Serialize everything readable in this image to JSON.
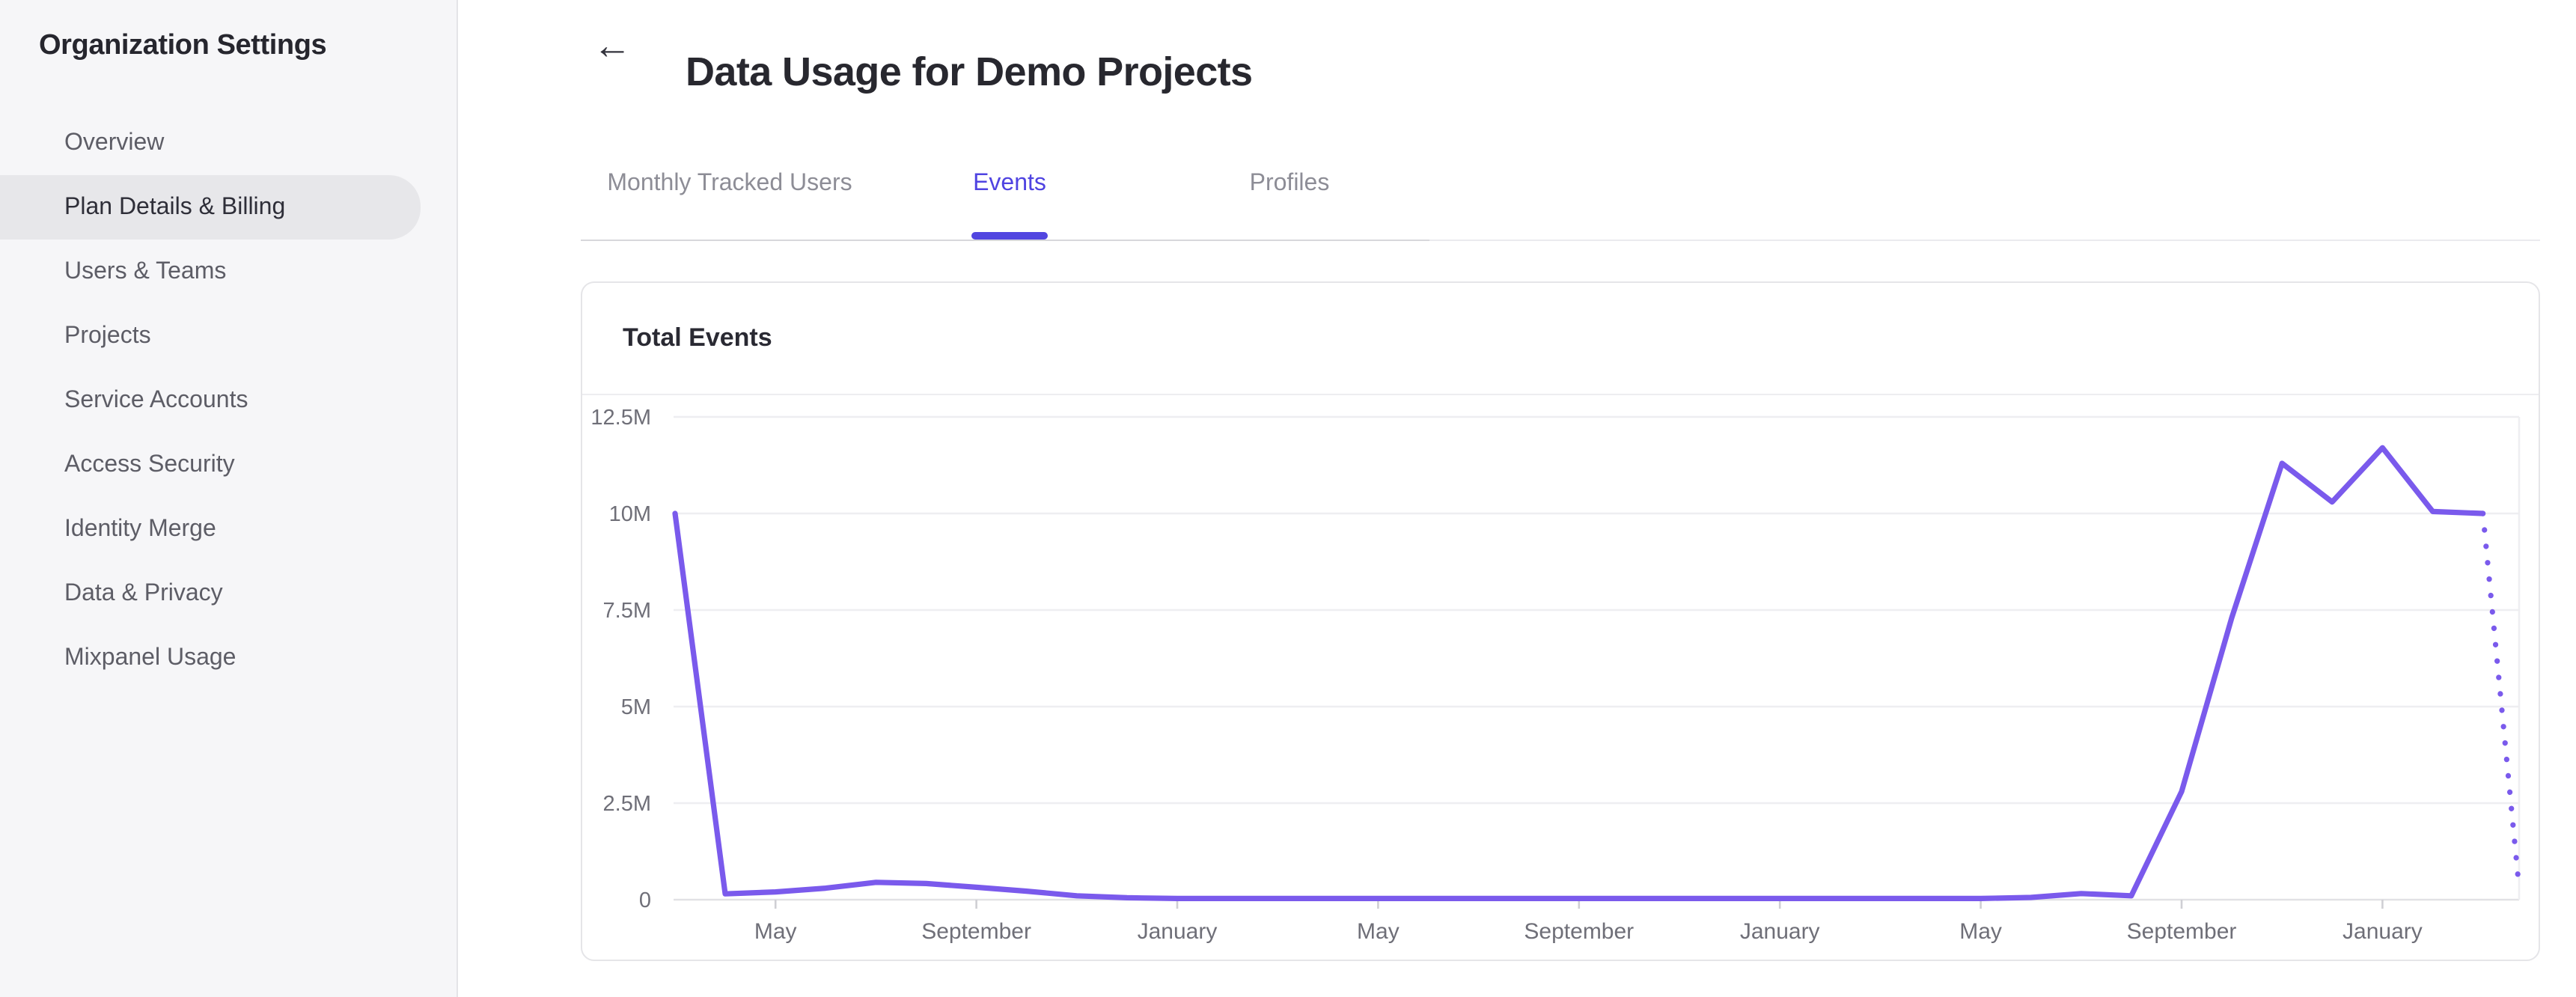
{
  "sidebar": {
    "title": "Organization Settings",
    "items": [
      {
        "label": "Overview",
        "selected": false
      },
      {
        "label": "Plan Details & Billing",
        "selected": true
      },
      {
        "label": "Users & Teams",
        "selected": false
      },
      {
        "label": "Projects",
        "selected": false
      },
      {
        "label": "Service Accounts",
        "selected": false
      },
      {
        "label": "Access Security",
        "selected": false
      },
      {
        "label": "Identity Merge",
        "selected": false
      },
      {
        "label": "Data & Privacy",
        "selected": false
      },
      {
        "label": "Mixpanel Usage",
        "selected": false
      }
    ]
  },
  "header": {
    "title": "Data Usage for Demo Projects"
  },
  "icons": {
    "back_arrow": "←"
  },
  "tabs": [
    {
      "label": "Monthly Tracked Users",
      "active": false
    },
    {
      "label": "Events",
      "active": true
    },
    {
      "label": "Profiles",
      "active": false
    }
  ],
  "card": {
    "title": "Total Events"
  },
  "colors": {
    "accent": "#5246e0",
    "active_tab_text": "#4f43e1",
    "chart_line": "#7a5aec",
    "axis_label": "#6f6f78",
    "gridline": "#eeeef1",
    "axis_line": "#e1e1e5",
    "sidebar_bg": "#f6f6f8",
    "selected_item_bg": "#e7e7ea"
  },
  "chart_data": {
    "type": "line",
    "title": "Total Events",
    "legend": "none",
    "grid": "horizontal-only",
    "y_axis": {
      "tick_labels": [
        "0",
        "2.5M",
        "5M",
        "7.5M",
        "10M",
        "12.5M"
      ],
      "unit": "events",
      "min_millions": 0,
      "max_millions": 12.5
    },
    "x_axis": {
      "tick_labels": [
        "May",
        "September",
        "January",
        "May",
        "September",
        "January",
        "May",
        "September",
        "January"
      ],
      "tick_month_indices": [
        2,
        6,
        10,
        14,
        18,
        22,
        26,
        30,
        34
      ],
      "months_total": 37,
      "interval": "monthly"
    },
    "line_color": "#7a5aec",
    "series": [
      {
        "name": "Total Events",
        "style": "solid",
        "values_millions": [
          10,
          0.15,
          0.2,
          0.3,
          0.45,
          0.42,
          0.32,
          0.22,
          0.1,
          0.05,
          0.03,
          0.03,
          0.03,
          0.03,
          0.03,
          0.03,
          0.03,
          0.03,
          0.03,
          0.03,
          0.03,
          0.03,
          0.03,
          0.03,
          0.03,
          0.03,
          0.03,
          0.06,
          0.16,
          0.1,
          2.8,
          7.3,
          11.3,
          10.3,
          11.7,
          10.05,
          10
        ]
      }
    ],
    "projection": {
      "style": "dotted",
      "start_index": 36,
      "start_value_millions": 10,
      "end_index": 36.72,
      "end_value_millions": 0.3
    }
  }
}
